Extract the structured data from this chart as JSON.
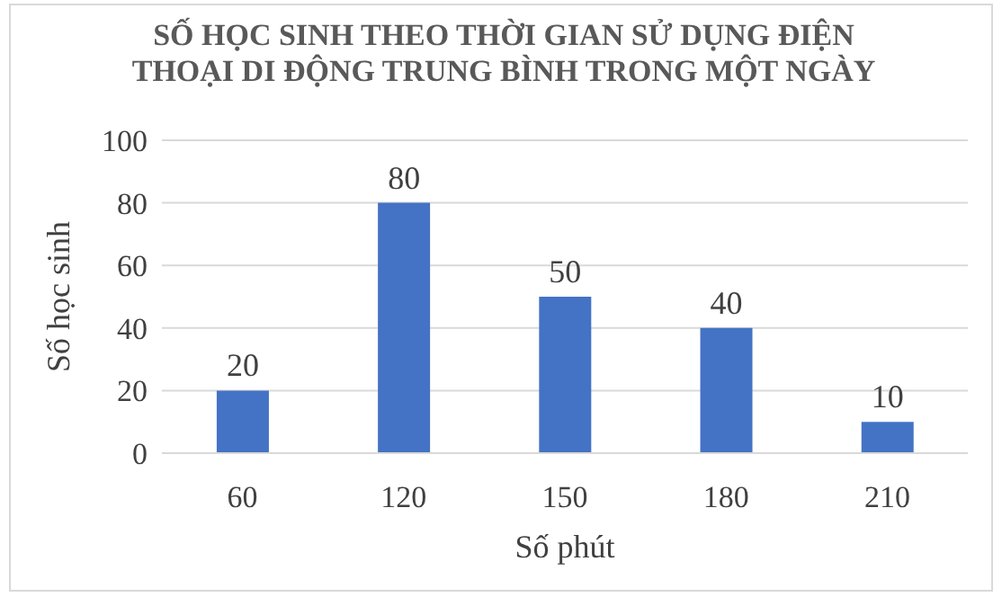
{
  "chart_data": {
    "type": "bar",
    "title": "SỐ HỌC SINH THEO THỜI GIAN SỬ DỤNG ĐIỆN THOẠI DI ĐỘNG TRUNG BÌNH TRONG MỘT NGÀY",
    "xlabel": "Số phút",
    "ylabel": "Số học sinh",
    "categories": [
      "60",
      "120",
      "150",
      "180",
      "210"
    ],
    "values": [
      20,
      80,
      50,
      40,
      10
    ],
    "color": "#4472c4",
    "ylim": [
      0,
      100
    ],
    "yticks": [
      0,
      20,
      40,
      60,
      80,
      100
    ],
    "grid": "y",
    "data_labels": true
  }
}
